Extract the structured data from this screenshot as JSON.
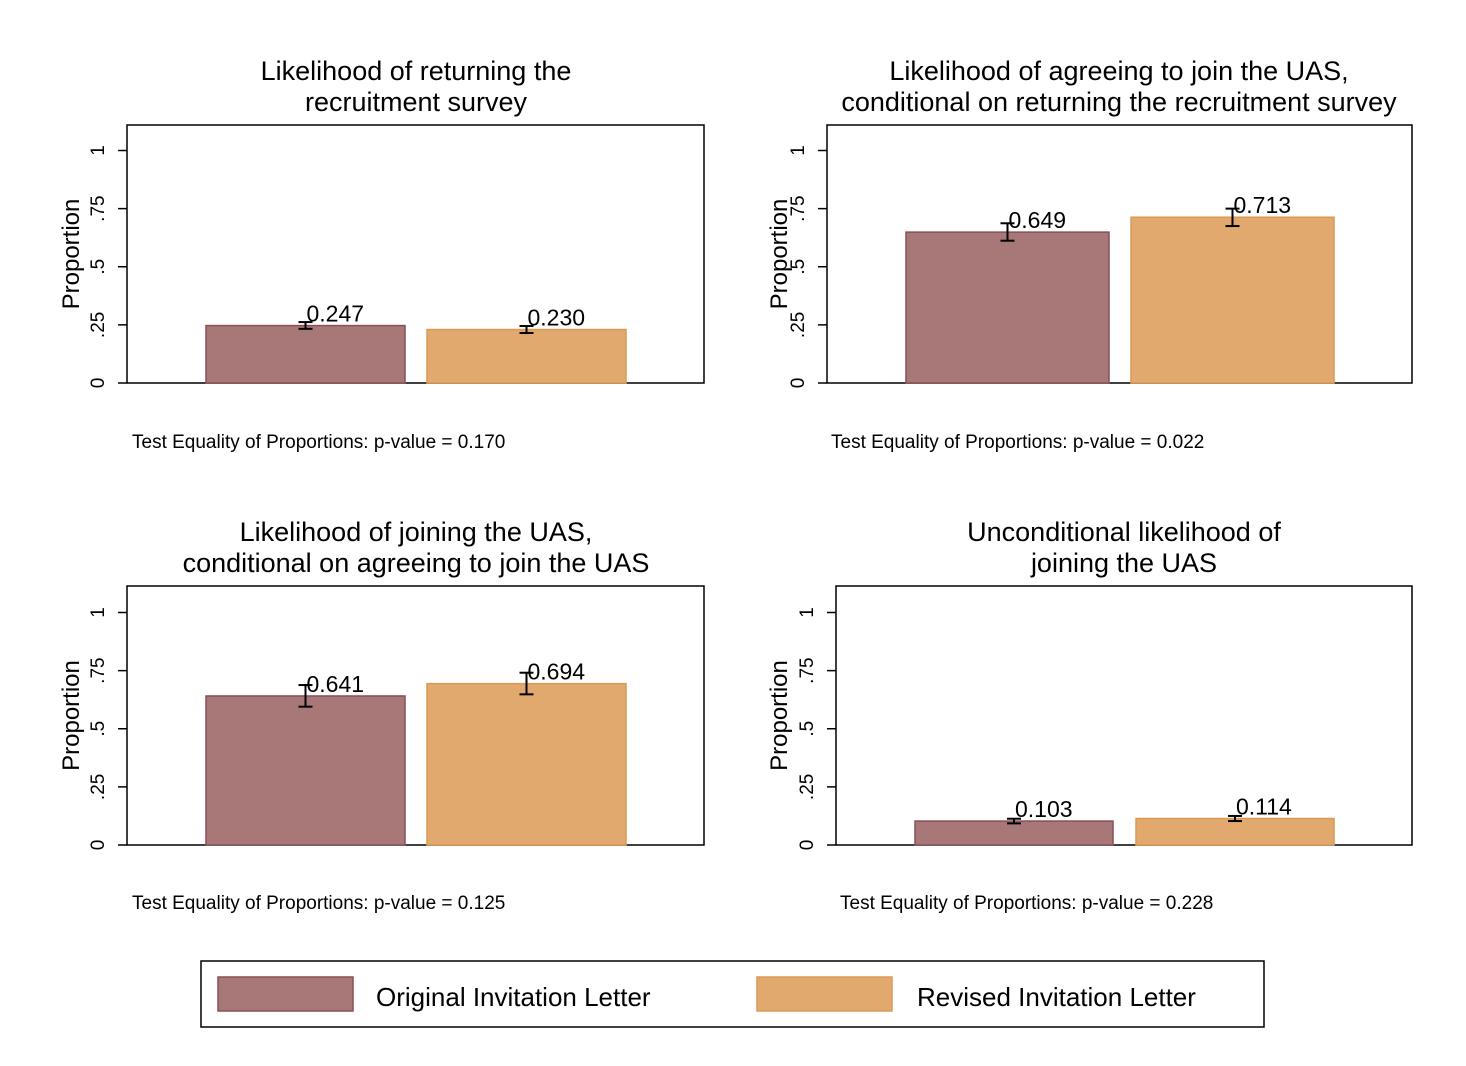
{
  "chart_data": [
    {
      "type": "bar",
      "title_lines": [
        "Likelihood of returning the",
        "recruitment survey"
      ],
      "ylabel": "Proportion",
      "ylim": [
        0,
        1.1
      ],
      "yticks": [
        "0",
        ".25",
        ".5",
        ".75",
        "1"
      ],
      "series": [
        {
          "name": "Original Invitation Letter",
          "value": 0.247,
          "label": "0.247",
          "ci": [
            0.233,
            0.262
          ]
        },
        {
          "name": "Revised Invitation Letter",
          "value": 0.23,
          "label": "0.230",
          "ci": [
            0.215,
            0.245
          ]
        }
      ],
      "note": "Test Equality of Proportions: p-value = 0.170"
    },
    {
      "type": "bar",
      "title_lines": [
        "Likelihood of agreeing to join the UAS,",
        "conditional on returning the recruitment survey"
      ],
      "ylabel": "Proportion",
      "ylim": [
        0,
        1.1
      ],
      "yticks": [
        "0",
        ".25",
        ".5",
        ".75",
        "1"
      ],
      "series": [
        {
          "name": "Original Invitation Letter",
          "value": 0.649,
          "label": "0.649",
          "ci": [
            0.612,
            0.687
          ]
        },
        {
          "name": "Revised Invitation Letter",
          "value": 0.713,
          "label": "0.713",
          "ci": [
            0.675,
            0.75
          ]
        }
      ],
      "note": "Test Equality of Proportions: p-value = 0.022"
    },
    {
      "type": "bar",
      "title_lines": [
        "Likelihood of joining the UAS,",
        "conditional on agreeing to join the UAS"
      ],
      "ylabel": "Proportion",
      "ylim": [
        0,
        1.1
      ],
      "yticks": [
        "0",
        ".25",
        ".5",
        ".75",
        "1"
      ],
      "series": [
        {
          "name": "Original Invitation Letter",
          "value": 0.641,
          "label": "0.641",
          "ci": [
            0.595,
            0.688
          ]
        },
        {
          "name": "Revised Invitation Letter",
          "value": 0.694,
          "label": "0.694",
          "ci": [
            0.648,
            0.741
          ]
        }
      ],
      "note": "Test Equality of Proportions: p-value = 0.125"
    },
    {
      "type": "bar",
      "title_lines": [
        "Unconditional likelihood of",
        "joining the UAS"
      ],
      "ylabel": "Proportion",
      "ylim": [
        0,
        1.1
      ],
      "yticks": [
        "0",
        ".25",
        ".5",
        ".75",
        "1"
      ],
      "series": [
        {
          "name": "Original Invitation Letter",
          "value": 0.103,
          "label": "0.103",
          "ci": [
            0.093,
            0.113
          ]
        },
        {
          "name": "Revised Invitation Letter",
          "value": 0.114,
          "label": "0.114",
          "ci": [
            0.103,
            0.125
          ]
        }
      ],
      "note": "Test Equality of Proportions: p-value = 0.228"
    }
  ],
  "legend": {
    "items": [
      {
        "label": "Original Invitation Letter",
        "color": "#a87878",
        "border": "#8a4f56"
      },
      {
        "label": "Revised Invitation Letter",
        "color": "#e2a96e",
        "border": "#d99a55"
      }
    ]
  },
  "colors": {
    "original": "#a87878",
    "original_border": "#8a4f56",
    "revised": "#e2a96e",
    "revised_border": "#d99a55"
  }
}
